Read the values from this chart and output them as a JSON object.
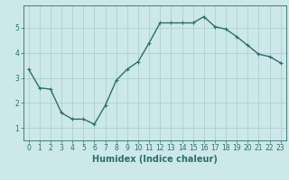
{
  "x": [
    0,
    1,
    2,
    3,
    4,
    5,
    6,
    7,
    8,
    9,
    10,
    11,
    12,
    13,
    14,
    15,
    16,
    17,
    18,
    19,
    20,
    21,
    22,
    23
  ],
  "y": [
    3.35,
    2.6,
    2.55,
    1.6,
    1.35,
    1.35,
    1.15,
    1.9,
    2.9,
    3.35,
    3.65,
    4.4,
    5.2,
    5.2,
    5.2,
    5.2,
    5.45,
    5.05,
    4.95,
    4.65,
    4.3,
    3.95,
    3.85,
    3.6
  ],
  "line_color": "#2d6e6e",
  "marker": "+",
  "marker_size": 3,
  "linewidth": 1.0,
  "xlabel": "Humidex (Indice chaleur)",
  "ylim": [
    0.5,
    5.9
  ],
  "xlim": [
    -0.5,
    23.5
  ],
  "yticks": [
    1,
    2,
    3,
    4,
    5
  ],
  "xticks": [
    0,
    1,
    2,
    3,
    4,
    5,
    6,
    7,
    8,
    9,
    10,
    11,
    12,
    13,
    14,
    15,
    16,
    17,
    18,
    19,
    20,
    21,
    22,
    23
  ],
  "bg_color": "#cce8e8",
  "grid_color": "#aacccc",
  "tick_label_fontsize": 5.5,
  "xlabel_fontsize": 7.0
}
